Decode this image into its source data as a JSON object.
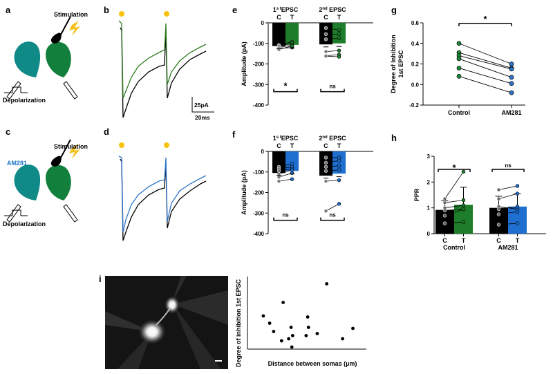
{
  "panels": {
    "a": "a",
    "b": "b",
    "c": "c",
    "d": "d",
    "e": "e",
    "f": "f",
    "g": "g",
    "h": "h",
    "i": "i"
  },
  "schematic": {
    "stimulation": "Stimulation",
    "depolarization": "Depolarization",
    "drug": "AM281",
    "colors": {
      "neuron": "#0f8a86",
      "right_neuron": "#127f3c",
      "drug_text": "#1e73c8",
      "bolt": "#f4c21d"
    }
  },
  "scale_bar": {
    "current": "25pA",
    "time": "20ms"
  },
  "trace_colors": {
    "control": "#000000",
    "treat_green": "#2e7d1f",
    "treat_blue": "#2d74c8",
    "stim_dot": "#f7c20e"
  },
  "chart_data": [
    {
      "id": "e",
      "type": "bar",
      "ylabel": "Amplitude (pA)",
      "ylim": [
        -400,
        0
      ],
      "yticks": [
        0,
        -100,
        -200,
        -300,
        -400
      ],
      "groups": [
        {
          "title_main": "1",
          "title_sup": "s t",
          "title_rest": "EPSC",
          "categories": [
            "C",
            "T"
          ],
          "bar_values": [
            -113,
            -107
          ],
          "bar_colors": [
            "#000000",
            "#1e7d2a"
          ],
          "pairs": [
            [
              -108,
              -92
            ],
            [
              -113,
              -100
            ],
            [
              -120,
              -108
            ],
            [
              -125,
              -120
            ],
            [
              -130,
              -112
            ]
          ]
        },
        {
          "title_main": "2",
          "title_sup": "nd",
          "title_rest": " EPSC",
          "categories": [
            "C",
            "T"
          ],
          "bar_values": [
            -105,
            -100
          ],
          "bar_colors": [
            "#000000",
            "#1e7d2a"
          ],
          "pairs": [
            [
              -25,
              -35
            ],
            [
              -55,
              -55
            ],
            [
              -80,
              -75
            ],
            [
              -140,
              -135
            ],
            [
              -160,
              -155
            ],
            [
              -162,
              -165
            ]
          ]
        }
      ],
      "significance": [
        "*",
        "ns"
      ]
    },
    {
      "id": "f",
      "type": "bar",
      "ylabel": "Amplitude (pA)",
      "ylim": [
        -400,
        0
      ],
      "yticks": [
        0,
        -100,
        -200,
        -300,
        -400
      ],
      "groups": [
        {
          "title_main": "1",
          "title_sup": "s t",
          "title_rest": "EPSC",
          "categories": [
            "C",
            "T"
          ],
          "bar_values": [
            -105,
            -95
          ],
          "bar_colors": [
            "#000000",
            "#1e6fd0"
          ],
          "pairs": [
            [
              -75,
              -60
            ],
            [
              -85,
              -75
            ],
            [
              -95,
              -85
            ],
            [
              -110,
              -90
            ],
            [
              -125,
              -105
            ],
            [
              -145,
              -135
            ]
          ]
        },
        {
          "title_main": "2",
          "title_sup": "nd",
          "title_rest": " EPSC",
          "categories": [
            "C",
            "T"
          ],
          "bar_values": [
            -118,
            -108
          ],
          "bar_colors": [
            "#000000",
            "#1e6fd0"
          ],
          "pairs": [
            [
              -30,
              -30
            ],
            [
              -55,
              -45
            ],
            [
              -75,
              -70
            ],
            [
              -95,
              -90
            ],
            [
              -145,
              -140
            ],
            [
              -290,
              -255
            ]
          ]
        }
      ],
      "significance": [
        "ns",
        "ns"
      ]
    },
    {
      "id": "g",
      "type": "line",
      "ylabel": "Degree of Inhibition\n1st EPSC",
      "ylim": [
        -0.2,
        0.6
      ],
      "yticks": [
        0.6,
        0.4,
        0.2,
        0.0,
        -0.2
      ],
      "categories": [
        "Control",
        "AM281"
      ],
      "pairs": [
        [
          0.4,
          0.2
        ],
        [
          0.31,
          0.16
        ],
        [
          0.28,
          0.15
        ],
        [
          0.25,
          0.07
        ],
        [
          0.16,
          0.01
        ],
        [
          0.08,
          -0.08
        ]
      ],
      "colors": [
        "#1e8a3c",
        "#2d74c8"
      ],
      "significance": "*"
    },
    {
      "id": "h",
      "type": "bar",
      "ylabel": "PPR",
      "ylim": [
        0,
        3
      ],
      "yticks": [
        0,
        1,
        2,
        3
      ],
      "groups": [
        {
          "label": "Control",
          "categories": [
            "C",
            "T"
          ],
          "bar_values": [
            0.92,
            1.12
          ],
          "errors": [
            0.35,
            0.68
          ],
          "bar_colors": [
            "#000000",
            "#1e7d2a"
          ],
          "pairs": [
            [
              1.35,
              2.4
            ],
            [
              1.2,
              1.3
            ],
            [
              1.0,
              1.1
            ],
            [
              0.9,
              0.95
            ],
            [
              0.7,
              0.95
            ],
            [
              0.4,
              0.45
            ]
          ],
          "significance": "*"
        },
        {
          "label": "AM281",
          "categories": [
            "C",
            "T"
          ],
          "bar_values": [
            1.0,
            1.05
          ],
          "errors": [
            0.45,
            0.5
          ],
          "bar_colors": [
            "#000000",
            "#1e6fd0"
          ],
          "pairs": [
            [
              1.7,
              1.85
            ],
            [
              1.35,
              1.55
            ],
            [
              1.05,
              0.95
            ],
            [
              0.95,
              1.05
            ],
            [
              0.75,
              0.85
            ],
            [
              0.35,
              0.4
            ]
          ],
          "significance": "ns"
        }
      ]
    },
    {
      "id": "i",
      "type": "scatter",
      "xlabel": "Distance between somas (µm)",
      "ylabel": "Degree of inhibition 1st EPSC",
      "x": [
        20,
        28,
        33,
        43,
        45,
        52,
        55,
        56,
        57,
        74,
        76,
        77,
        88,
        100,
        120,
        133
      ],
      "y": [
        0.27,
        0.2,
        0.12,
        0.03,
        0.4,
        0.05,
        0.16,
        -0.03,
        0.08,
        0.08,
        0.26,
        0.16,
        0.1,
        0.58,
        0.05,
        0.15
      ],
      "xlim": [
        0,
        150
      ],
      "ylim": [
        -0.05,
        0.65
      ]
    }
  ]
}
